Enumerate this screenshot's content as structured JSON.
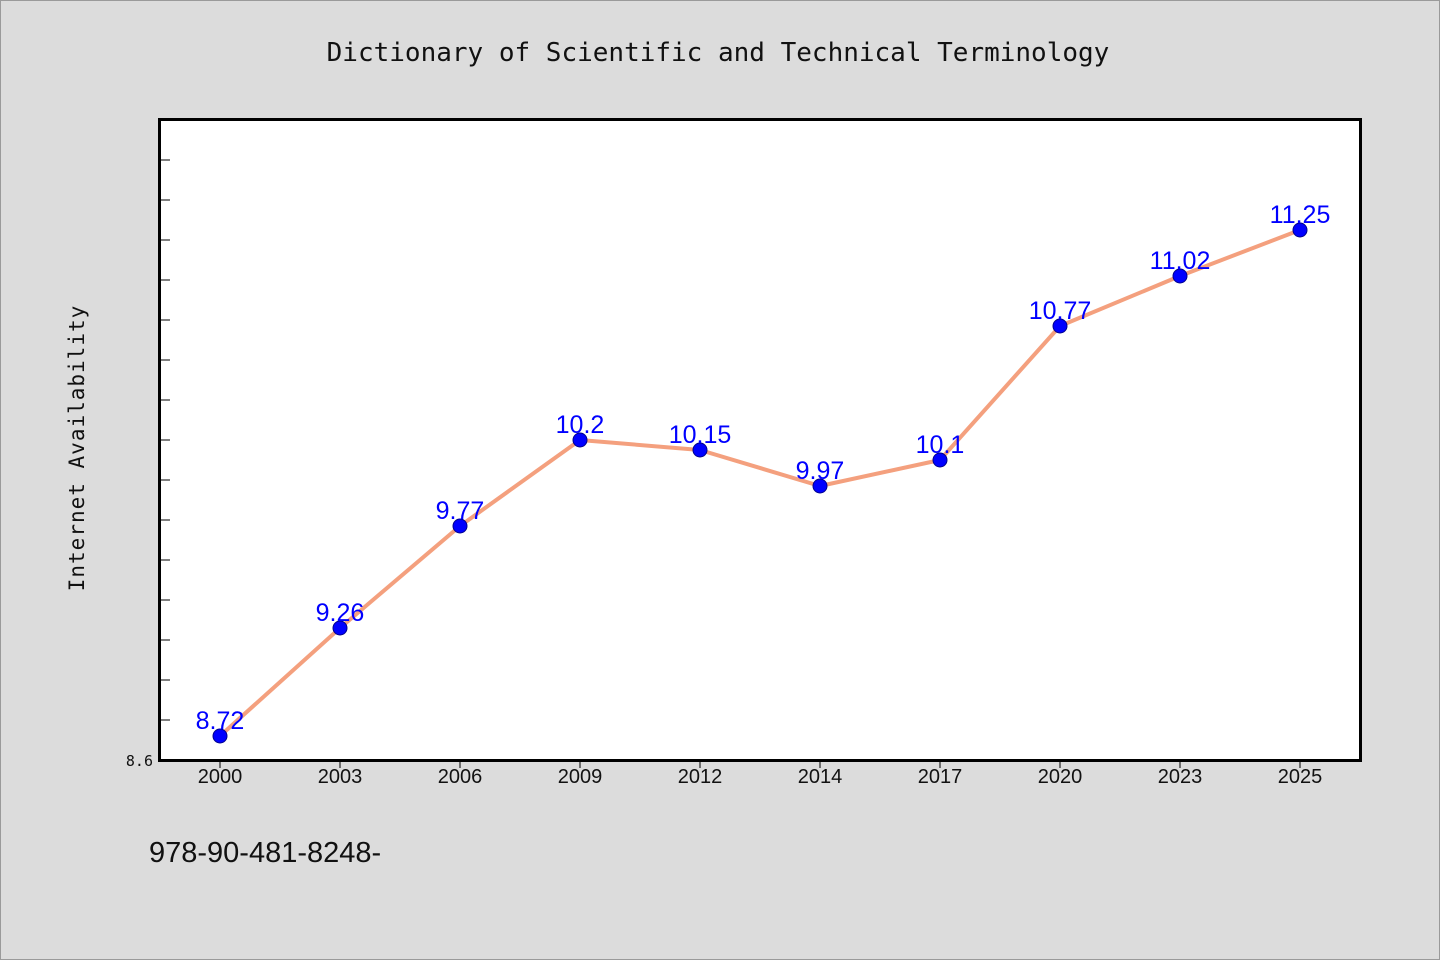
{
  "chart_data": {
    "type": "line",
    "title": "Dictionary of Scientific and Technical Terminology",
    "xlabel": "",
    "ylabel": "Internet Availability",
    "categories": [
      "2000",
      "2003",
      "2006",
      "2009",
      "2012",
      "2014",
      "2017",
      "2020",
      "2023",
      "2025"
    ],
    "series": [
      {
        "values": [
          8.72,
          9.26,
          9.77,
          10.2,
          10.15,
          9.97,
          10.1,
          10.77,
          11.02,
          11.25
        ],
        "data_labels": [
          "8.72",
          "9.26",
          "9.77",
          "10.2",
          "10.15",
          "9.97",
          "10.1",
          "10.77",
          "11.02",
          "11.25"
        ]
      }
    ],
    "ylim": [
      8.6,
      11.8
    ],
    "y_tick_labels": [
      "8.6"
    ],
    "grid": false,
    "legend": "none",
    "colors": {
      "line": "#f4a07e",
      "marker": "#0000ff",
      "data_label": "#0000ff",
      "background": "#dcdcdc",
      "plot_background": "#ffffff"
    }
  },
  "footer_text": "978-90-481-8248-"
}
